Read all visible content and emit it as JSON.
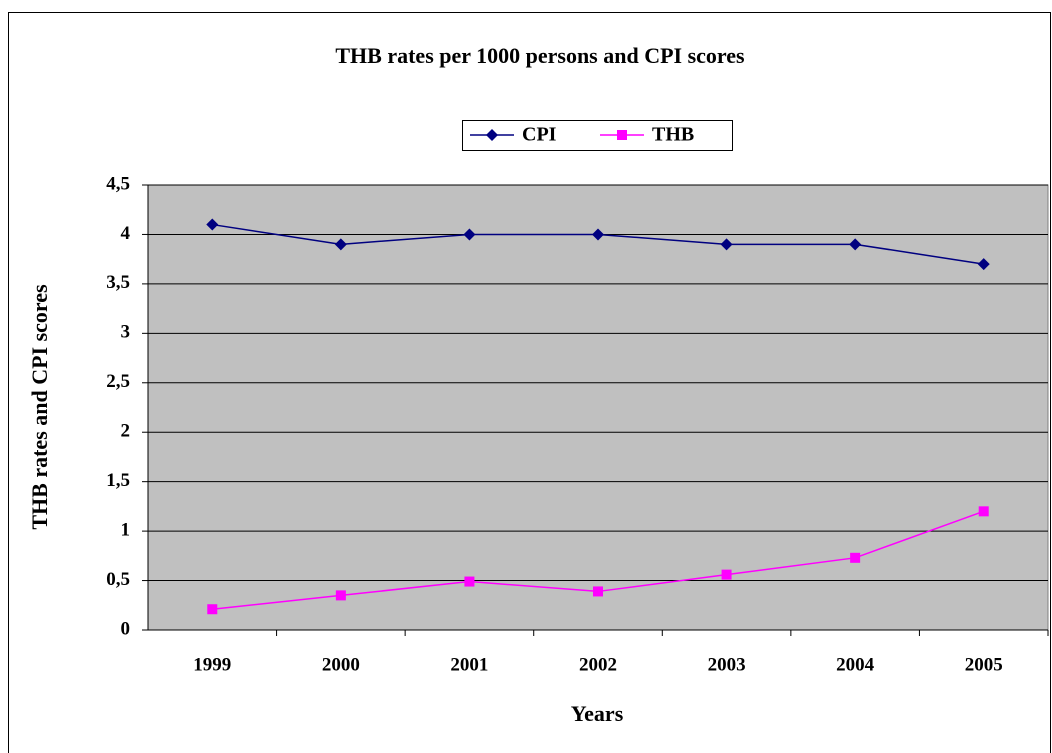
{
  "chart_data": {
    "type": "line",
    "title": "THB rates per 1000 persons and CPI scores",
    "x_label": "Years",
    "y_label": "THB rates and CPI scores",
    "categories": [
      "1999",
      "2000",
      "2001",
      "2002",
      "2003",
      "2004",
      "2005"
    ],
    "series": [
      {
        "name": "CPI",
        "color": "#000080",
        "marker": "diamond",
        "values": [
          4.1,
          3.9,
          4.0,
          4.0,
          3.9,
          3.9,
          3.7
        ]
      },
      {
        "name": "THB",
        "color": "#ff00ff",
        "marker": "square",
        "values": [
          0.21,
          0.35,
          0.49,
          0.39,
          0.56,
          0.73,
          1.2
        ]
      }
    ],
    "ylim": [
      0,
      4.5
    ],
    "yticks": [
      0,
      {
        "value": 0.5,
        "label": "0,5"
      },
      1,
      {
        "value": 1.5,
        "label": "1,5"
      },
      2,
      {
        "value": 2.5,
        "label": "2,5"
      },
      3,
      {
        "value": 3.5,
        "label": "3,5"
      },
      4,
      {
        "value": 4.5,
        "label": "4,5"
      }
    ],
    "grid": true,
    "legend": "top",
    "plot_background": "#c0c0c0"
  }
}
